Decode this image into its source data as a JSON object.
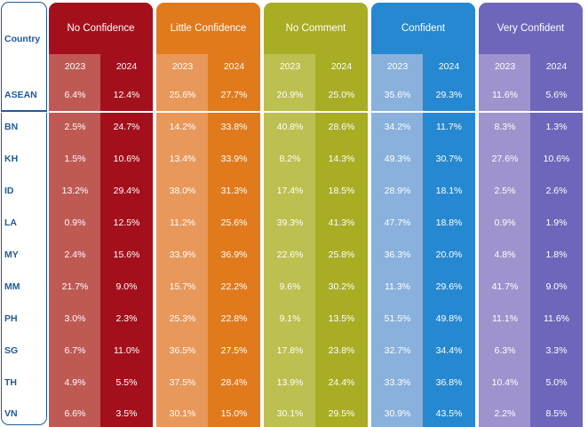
{
  "header": {
    "country_label": "Country"
  },
  "chart_data": {
    "type": "table",
    "years": [
      "2023",
      "2024"
    ],
    "groups": [
      {
        "name": "No Confidence",
        "colors": {
          "head": "#a40f1c",
          "y2023": "#bf5954",
          "y2024": "#a40f1c"
        }
      },
      {
        "name": "Little Confidence",
        "colors": {
          "head": "#e17a1c",
          "y2023": "#e8985a",
          "y2024": "#e17a1c"
        }
      },
      {
        "name": "No Comment",
        "colors": {
          "head": "#a8ad24",
          "y2023": "#bcc050",
          "y2024": "#a8ad24"
        }
      },
      {
        "name": "Confident",
        "colors": {
          "head": "#2688d0",
          "y2023": "#89b1dc",
          "y2024": "#2688d0"
        }
      },
      {
        "name": "Very Confident",
        "colors": {
          "head": "#6e66bb",
          "y2023": "#9f93cd",
          "y2024": "#6e66bb"
        }
      }
    ],
    "rows": [
      {
        "country": "ASEAN",
        "values": [
          "6.4%",
          "12.4%",
          "25.6%",
          "27.7%",
          "20.9%",
          "25.0%",
          "35.6%",
          "29.3%",
          "11.6%",
          "5.6%"
        ]
      },
      {
        "country": "BN",
        "values": [
          "2.5%",
          "24.7%",
          "14.2%",
          "33.8%",
          "40.8%",
          "28.6%",
          "34.2%",
          "11.7%",
          "8.3%",
          "1.3%"
        ]
      },
      {
        "country": "KH",
        "values": [
          "1.5%",
          "10.6%",
          "13.4%",
          "33.9%",
          "8.2%",
          "14.3%",
          "49.3%",
          "30.7%",
          "27.6%",
          "10.6%"
        ]
      },
      {
        "country": "ID",
        "values": [
          "13.2%",
          "29.4%",
          "38.0%",
          "31.3%",
          "17.4%",
          "18.5%",
          "28.9%",
          "18.1%",
          "2.5%",
          "2.6%"
        ]
      },
      {
        "country": "LA",
        "values": [
          "0.9%",
          "12.5%",
          "11.2%",
          "25.6%",
          "39.3%",
          "41.3%",
          "47.7%",
          "18.8%",
          "0.9%",
          "1.9%"
        ]
      },
      {
        "country": "MY",
        "values": [
          "2.4%",
          "15.6%",
          "33.9%",
          "36.9%",
          "22.6%",
          "25.8%",
          "36.3%",
          "20.0%",
          "4.8%",
          "1.8%"
        ]
      },
      {
        "country": "MM",
        "values": [
          "21.7%",
          "9.0%",
          "15.7%",
          "22.2%",
          "9.6%",
          "30.2%",
          "11.3%",
          "29.6%",
          "41.7%",
          "9.0%"
        ]
      },
      {
        "country": "PH",
        "values": [
          "3.0%",
          "2.3%",
          "25.3%",
          "22.8%",
          "9.1%",
          "13.5%",
          "51.5%",
          "49.8%",
          "11.1%",
          "11.6%"
        ]
      },
      {
        "country": "SG",
        "values": [
          "6.7%",
          "11.0%",
          "36.5%",
          "27.5%",
          "17.8%",
          "23.8%",
          "32.7%",
          "34.4%",
          "6.3%",
          "3.3%"
        ]
      },
      {
        "country": "TH",
        "values": [
          "4.9%",
          "5.5%",
          "37.5%",
          "28.4%",
          "13.9%",
          "24.4%",
          "33.3%",
          "36.8%",
          "10.4%",
          "5.0%"
        ]
      },
      {
        "country": "VN",
        "values": [
          "6.6%",
          "3.5%",
          "30.1%",
          "15.0%",
          "30.1%",
          "29.5%",
          "30.9%",
          "43.5%",
          "2.2%",
          "8.5%"
        ]
      }
    ]
  }
}
